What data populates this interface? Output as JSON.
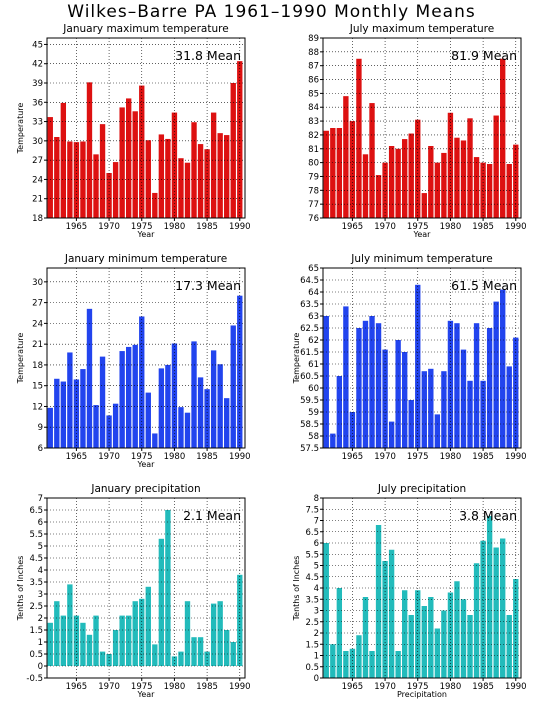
{
  "page": {
    "title": "Wilkes–Barre PA  1961–1990 Monthly Means"
  },
  "chart_data": [
    {
      "id": "jan-max",
      "type": "bar",
      "title": "January maximum temperature",
      "xlabel": "Year",
      "ylabel": "Temperature",
      "mean_label": "31.8 Mean",
      "color": "#dd1111",
      "x": [
        1961,
        1962,
        1963,
        1964,
        1965,
        1966,
        1967,
        1968,
        1969,
        1970,
        1971,
        1972,
        1973,
        1974,
        1975,
        1976,
        1977,
        1978,
        1979,
        1980,
        1981,
        1982,
        1983,
        1984,
        1985,
        1986,
        1987,
        1988,
        1989,
        1990
      ],
      "values": [
        33.7,
        30.6,
        35.9,
        29.9,
        29.8,
        29.9,
        39.1,
        27.9,
        32.6,
        25.0,
        26.7,
        35.2,
        36.6,
        34.6,
        38.6,
        30.1,
        21.9,
        31.0,
        30.3,
        34.4,
        27.3,
        26.6,
        32.9,
        29.5,
        28.7,
        34.4,
        31.2,
        30.9,
        39.0,
        42.4
      ],
      "xlim": [
        1961,
        1990
      ],
      "ylim": [
        18,
        46
      ],
      "yticks": [
        "18",
        "21",
        "24",
        "27",
        "30",
        "33",
        "36",
        "39",
        "42",
        "45"
      ],
      "xticks": [
        "1965",
        "1970",
        "1975",
        "1980",
        "1985",
        "1990"
      ],
      "grid": true
    },
    {
      "id": "jul-max",
      "type": "bar",
      "title": "July maximum temperature",
      "xlabel": "Year",
      "ylabel": "",
      "mean_label": "81.9 Mean",
      "color": "#dd1111",
      "x": [
        1961,
        1962,
        1963,
        1964,
        1965,
        1966,
        1967,
        1968,
        1969,
        1970,
        1971,
        1972,
        1973,
        1974,
        1975,
        1976,
        1977,
        1978,
        1979,
        1980,
        1981,
        1982,
        1983,
        1984,
        1985,
        1986,
        1987,
        1988,
        1989,
        1990
      ],
      "values": [
        82.3,
        82.5,
        82.5,
        84.8,
        83.0,
        87.5,
        80.6,
        84.3,
        79.1,
        80.0,
        81.2,
        81.0,
        81.7,
        82.1,
        83.1,
        77.8,
        81.2,
        80.0,
        80.7,
        83.6,
        81.8,
        81.6,
        83.2,
        80.4,
        80.0,
        79.9,
        83.4,
        87.5,
        79.9,
        81.3
      ],
      "xlim": [
        1961,
        1990
      ],
      "ylim": [
        76,
        89
      ],
      "yticks": [
        "76",
        "77",
        "78",
        "79",
        "80",
        "81",
        "82",
        "83",
        "84",
        "85",
        "86",
        "87",
        "88",
        "89"
      ],
      "xticks": [
        "1965",
        "1970",
        "1975",
        "1980",
        "1985",
        "1990"
      ],
      "grid": true
    },
    {
      "id": "jan-min",
      "type": "bar",
      "title": "January minimum temperature",
      "xlabel": "Year",
      "ylabel": "Temperature",
      "mean_label": "17.3 Mean",
      "color": "#2244ee",
      "x": [
        1961,
        1962,
        1963,
        1964,
        1965,
        1966,
        1967,
        1968,
        1969,
        1970,
        1971,
        1972,
        1973,
        1974,
        1975,
        1976,
        1977,
        1978,
        1979,
        1980,
        1981,
        1982,
        1983,
        1984,
        1985,
        1986,
        1987,
        1988,
        1989,
        1990
      ],
      "values": [
        11.8,
        16.0,
        15.6,
        19.8,
        15.9,
        17.4,
        26.1,
        12.2,
        19.2,
        10.7,
        12.4,
        20.0,
        20.6,
        20.9,
        25.0,
        14.0,
        8.1,
        17.5,
        18.0,
        21.1,
        11.9,
        11.1,
        21.4,
        16.2,
        14.5,
        20.1,
        18.1,
        13.2,
        23.7,
        28.0
      ],
      "xlim": [
        1961,
        1990
      ],
      "ylim": [
        6,
        32
      ],
      "yticks": [
        "6",
        "9",
        "12",
        "15",
        "18",
        "21",
        "24",
        "27",
        "30"
      ],
      "xticks": [
        "1965",
        "1970",
        "1975",
        "1980",
        "1985",
        "1990"
      ],
      "grid": true
    },
    {
      "id": "jul-min",
      "type": "bar",
      "title": "July minimum temperature",
      "xlabel": "",
      "ylabel": "Temperature",
      "mean_label": "61.5 Mean",
      "color": "#2244ee",
      "x": [
        1961,
        1962,
        1963,
        1964,
        1965,
        1966,
        1967,
        1968,
        1969,
        1970,
        1971,
        1972,
        1973,
        1974,
        1975,
        1976,
        1977,
        1978,
        1979,
        1980,
        1981,
        1982,
        1983,
        1984,
        1985,
        1986,
        1987,
        1988,
        1989,
        1990
      ],
      "values": [
        63.0,
        58.1,
        60.5,
        63.4,
        59.0,
        62.5,
        62.8,
        63.0,
        62.7,
        61.6,
        58.6,
        62.0,
        61.5,
        59.5,
        64.3,
        60.7,
        60.8,
        58.9,
        60.7,
        62.8,
        62.7,
        61.6,
        60.3,
        62.7,
        60.3,
        62.5,
        63.6,
        64.1,
        60.9,
        62.1
      ],
      "xlim": [
        1961,
        1990
      ],
      "ylim": [
        57.5,
        65
      ],
      "yticks": [
        "57.5",
        "58",
        "58.5",
        "59",
        "59.5",
        "60",
        "60.5",
        "61",
        "61.5",
        "62",
        "62.5",
        "63",
        "63.5",
        "64",
        "64.5",
        "65"
      ],
      "xticks": [
        "1965",
        "1970",
        "1975",
        "1980",
        "1985",
        "1990"
      ],
      "grid": true
    },
    {
      "id": "jan-precip",
      "type": "bar",
      "title": "January precipitation",
      "xlabel": "Year",
      "ylabel": "Tenths of Inches",
      "mean_label": "2.1 Mean",
      "color": "#22bbbb",
      "x": [
        1961,
        1962,
        1963,
        1964,
        1965,
        1966,
        1967,
        1968,
        1969,
        1970,
        1971,
        1972,
        1973,
        1974,
        1975,
        1976,
        1977,
        1978,
        1979,
        1980,
        1981,
        1982,
        1983,
        1984,
        1985,
        1986,
        1987,
        1988,
        1989,
        1990
      ],
      "values": [
        1.8,
        2.7,
        2.1,
        3.4,
        2.1,
        1.8,
        1.3,
        2.1,
        0.6,
        0.5,
        1.5,
        2.1,
        2.1,
        2.7,
        2.8,
        3.3,
        0.9,
        5.3,
        6.5,
        0.4,
        0.6,
        2.7,
        1.2,
        1.2,
        0.6,
        2.6,
        2.7,
        1.5,
        1.0,
        3.8
      ],
      "xlim": [
        1961,
        1990
      ],
      "ylim": [
        -0.5,
        7
      ],
      "yticks": [
        "-0.5",
        "0",
        "0.5",
        "1",
        "1.5",
        "2",
        "2.5",
        "3",
        "3.5",
        "4",
        "4.5",
        "5",
        "5.5",
        "6",
        "6.5",
        "7"
      ],
      "xticks": [
        "1965",
        "1970",
        "1975",
        "1980",
        "1985",
        "1990"
      ],
      "grid": true
    },
    {
      "id": "jul-precip",
      "type": "bar",
      "title": "July precipitation",
      "xlabel": "Precipitation",
      "ylabel": "Tenths of Inches",
      "mean_label": "3.8 Mean",
      "color": "#22bbbb",
      "x": [
        1961,
        1962,
        1963,
        1964,
        1965,
        1966,
        1967,
        1968,
        1969,
        1970,
        1971,
        1972,
        1973,
        1974,
        1975,
        1976,
        1977,
        1978,
        1979,
        1980,
        1981,
        1982,
        1983,
        1984,
        1985,
        1986,
        1987,
        1988,
        1989,
        1990
      ],
      "values": [
        6.0,
        1.5,
        4.0,
        1.2,
        1.3,
        1.9,
        3.6,
        1.2,
        6.8,
        5.2,
        5.7,
        1.2,
        3.9,
        2.8,
        3.9,
        3.2,
        3.6,
        2.2,
        3.0,
        3.8,
        4.3,
        3.5,
        2.8,
        5.1,
        6.1,
        7.2,
        5.8,
        6.2,
        2.8,
        4.4
      ],
      "xlim": [
        1961,
        1990
      ],
      "ylim": [
        0,
        8
      ],
      "yticks": [
        "0",
        "0.5",
        "1",
        "1.5",
        "2",
        "2.5",
        "3",
        "3.5",
        "4",
        "4.5",
        "5",
        "5.5",
        "6",
        "6.5",
        "7",
        "7.5",
        "8"
      ],
      "xticks": [
        "1965",
        "1970",
        "1975",
        "1980",
        "1985",
        "1990"
      ],
      "grid": true
    }
  ]
}
